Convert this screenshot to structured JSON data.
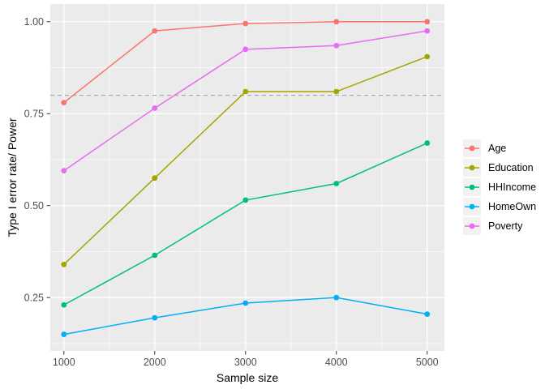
{
  "chart_data": {
    "type": "line",
    "title": "",
    "xlabel": "Sample size",
    "ylabel": "Type I error rate/ Power",
    "x": [
      1000,
      2000,
      3000,
      4000,
      5000
    ],
    "series": [
      {
        "name": "Age",
        "color": "#F8766D",
        "values": [
          0.78,
          0.975,
          0.995,
          1.0,
          1.0
        ]
      },
      {
        "name": "Education",
        "color": "#A3A500",
        "values": [
          0.34,
          0.575,
          0.81,
          0.81,
          0.905
        ]
      },
      {
        "name": "HHIncome",
        "color": "#00BF7D",
        "values": [
          0.23,
          0.365,
          0.515,
          0.56,
          0.67
        ]
      },
      {
        "name": "HomeOwn",
        "color": "#00B0F6",
        "values": [
          0.15,
          0.195,
          0.235,
          0.25,
          0.205
        ]
      },
      {
        "name": "Poverty",
        "color": "#E76BF3",
        "values": [
          0.595,
          0.765,
          0.925,
          0.935,
          0.975
        ]
      }
    ],
    "x_ticks": {
      "values": [
        1000,
        2000,
        3000,
        4000,
        5000
      ],
      "labels": [
        "1000",
        "2000",
        "3000",
        "4000",
        "5000"
      ]
    },
    "y_ticks": {
      "values": [
        0.25,
        0.5,
        0.75,
        1.0
      ],
      "labels": [
        "0.25",
        "0.50",
        "0.75",
        "1.00"
      ]
    },
    "x_minor": [
      1500,
      2500,
      3500,
      4500
    ],
    "y_minor": [
      0.125,
      0.375,
      0.625,
      0.875
    ],
    "xlim": [
      850,
      5190
    ],
    "ylim": [
      0.105,
      1.048
    ],
    "reference_line": {
      "y": 0.8,
      "style": "dashed",
      "color": "#A8A8A8"
    },
    "grid": true,
    "legend_position": "right",
    "panel_background": "#EBEBEB",
    "grid_color": "#FFFFFF",
    "tick_color": "#333333",
    "tick_label_color": "#4D4D4D",
    "axis_title_color": "#000000",
    "legend_key_background": "#F2F2F2",
    "marker_radius": 3.4,
    "line_width": 1.5
  }
}
